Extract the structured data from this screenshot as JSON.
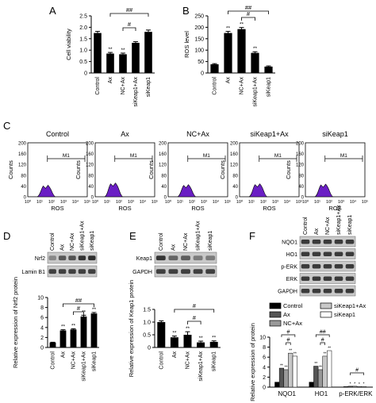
{
  "panel_letters": [
    "A",
    "B",
    "C",
    "D",
    "E",
    "F"
  ],
  "chart_data": [
    {
      "panel": "A",
      "type": "bar",
      "categories": [
        "Control",
        "Ax",
        "NC+Ax",
        "siKeap1+Ax",
        "siKeap1"
      ],
      "values": [
        1.75,
        0.85,
        0.82,
        1.32,
        1.8
      ],
      "errors": [
        0.07,
        0.05,
        0.05,
        0.05,
        0.08
      ],
      "ylabel": "Cell viability",
      "ylim": [
        0,
        2.5
      ],
      "yticks": [
        "0",
        "0.5",
        "1.0",
        "1.5",
        "2.0",
        "2.5"
      ],
      "stars": [
        "",
        "**",
        "**",
        "",
        ""
      ],
      "sig": [
        {
          "from": 2,
          "to": 3,
          "label": "#"
        },
        {
          "from": 1,
          "to": 4,
          "label": "##"
        }
      ],
      "colors": [
        "#000000"
      ]
    },
    {
      "panel": "B",
      "type": "bar",
      "categories": [
        "Control",
        "Ax",
        "NC+Ax",
        "siKeap1+Ax",
        "siKeap1"
      ],
      "values": [
        38,
        175,
        192,
        88,
        28
      ],
      "errors": [
        3,
        7,
        7,
        5,
        3
      ],
      "ylabel": "ROS level",
      "ylim": [
        0,
        250
      ],
      "yticks": [
        "0",
        "50",
        "100",
        "150",
        "200",
        "250"
      ],
      "stars": [
        "",
        "**",
        "**",
        "**",
        ""
      ],
      "sig": [
        {
          "from": 2,
          "to": 3,
          "label": "#"
        },
        {
          "from": 1,
          "to": 4,
          "label": "##"
        }
      ],
      "colors": [
        "#000000"
      ]
    },
    {
      "panel": "C",
      "type": "area",
      "titles": [
        "Control",
        "Ax",
        "NC+Ax",
        "siKeap1+Ax",
        "siKeap1"
      ],
      "ylabel": "Counts",
      "xlabel": "ROS",
      "yticks": [
        "0",
        "40",
        "80",
        "120",
        "160",
        "200"
      ],
      "xticks": [
        "10⁰",
        "10¹",
        "10²",
        "10³",
        "10⁴",
        "10⁵"
      ],
      "gate_label": "M1",
      "peak_heights": [
        40,
        48,
        42,
        45,
        44
      ],
      "colors": [
        "#6a1fc4"
      ]
    },
    {
      "panel": "D",
      "type": "bar",
      "categories": [
        "Control",
        "Ax",
        "NC+Ax",
        "siKeap1+Ax",
        "siKeap1"
      ],
      "values": [
        1.0,
        3.4,
        3.6,
        6.2,
        6.8
      ],
      "errors": [
        0.05,
        0.15,
        0.15,
        0.25,
        0.2
      ],
      "ylabel": "Relative expression of Nrf2 protein",
      "ylim": [
        0,
        10
      ],
      "yticks": [
        "0",
        "2",
        "4",
        "6",
        "8",
        "10"
      ],
      "stars": [
        "",
        "**",
        "**",
        "**",
        "**"
      ],
      "sig": [
        {
          "from": 2,
          "to": 3,
          "label": "#"
        },
        {
          "from": 1,
          "to": 4,
          "label": "##"
        }
      ],
      "blot_rows": [
        "Nrf2",
        "Lamin B1"
      ],
      "colors": [
        "#000000"
      ]
    },
    {
      "panel": "E",
      "type": "bar",
      "categories": [
        "Control",
        "Ax",
        "NC+Ax",
        "siKeap1+Ax",
        "siKeap1"
      ],
      "values": [
        1.0,
        0.4,
        0.5,
        0.2,
        0.22
      ],
      "errors": [
        0.05,
        0.05,
        0.12,
        0.05,
        0.04
      ],
      "ylabel": "Relative expression of Keap1 protein",
      "ylim": [
        0,
        1.5
      ],
      "yticks": [
        "0",
        "0.5",
        "1.0",
        "1.5"
      ],
      "stars": [
        "",
        "**",
        "**",
        "**",
        "**"
      ],
      "sig": [
        {
          "from": 2,
          "to": 3,
          "label": "#"
        },
        {
          "from": 1,
          "to": 4,
          "label": "#"
        }
      ],
      "blot_rows": [
        "Keap1",
        "GAPDH"
      ],
      "colors": [
        "#000000"
      ]
    },
    {
      "panel": "F",
      "type": "bar",
      "groups": [
        "NQO1",
        "HO1",
        "p-ERK/ERK"
      ],
      "series": [
        {
          "name": "Control",
          "values": [
            1.0,
            1.0,
            0.1
          ],
          "color": "#000000"
        },
        {
          "name": "Ax",
          "values": [
            3.8,
            4.2,
            0.18
          ],
          "color": "#555555"
        },
        {
          "name": "NC+Ax",
          "values": [
            3.5,
            3.5,
            0.18
          ],
          "color": "#999999"
        },
        {
          "name": "siKeap1+Ax",
          "values": [
            6.8,
            6.2,
            0.1
          ],
          "color": "#c8c8c8"
        },
        {
          "name": "siKeap1",
          "values": [
            6.2,
            7.3,
            0.12
          ],
          "color": "#ffffff"
        }
      ],
      "stars": [
        [
          "",
          "**",
          "**",
          "**",
          "**"
        ],
        [
          "",
          "**",
          "**",
          "**",
          "**"
        ],
        [
          "",
          "*",
          "*",
          "*",
          "*"
        ]
      ],
      "ylabel": "Relative expression of protein",
      "ylim": [
        0,
        10
      ],
      "yticks": [
        "0",
        "2",
        "4",
        "6",
        "8",
        "10"
      ],
      "sig": [
        {
          "group": 0,
          "from": 2,
          "to": 3,
          "label": "#"
        },
        {
          "group": 0,
          "from": 1,
          "to": 4,
          "label": "#"
        },
        {
          "group": 1,
          "from": 2,
          "to": 3,
          "label": "#"
        },
        {
          "group": 1,
          "from": 1,
          "to": 4,
          "label": "##"
        },
        {
          "group": 2,
          "from": 1,
          "to": 4,
          "label": "#"
        }
      ],
      "blot_rows": [
        "NQO1",
        "HO1",
        "p-ERK",
        "ERK",
        "GAPDH"
      ]
    }
  ]
}
